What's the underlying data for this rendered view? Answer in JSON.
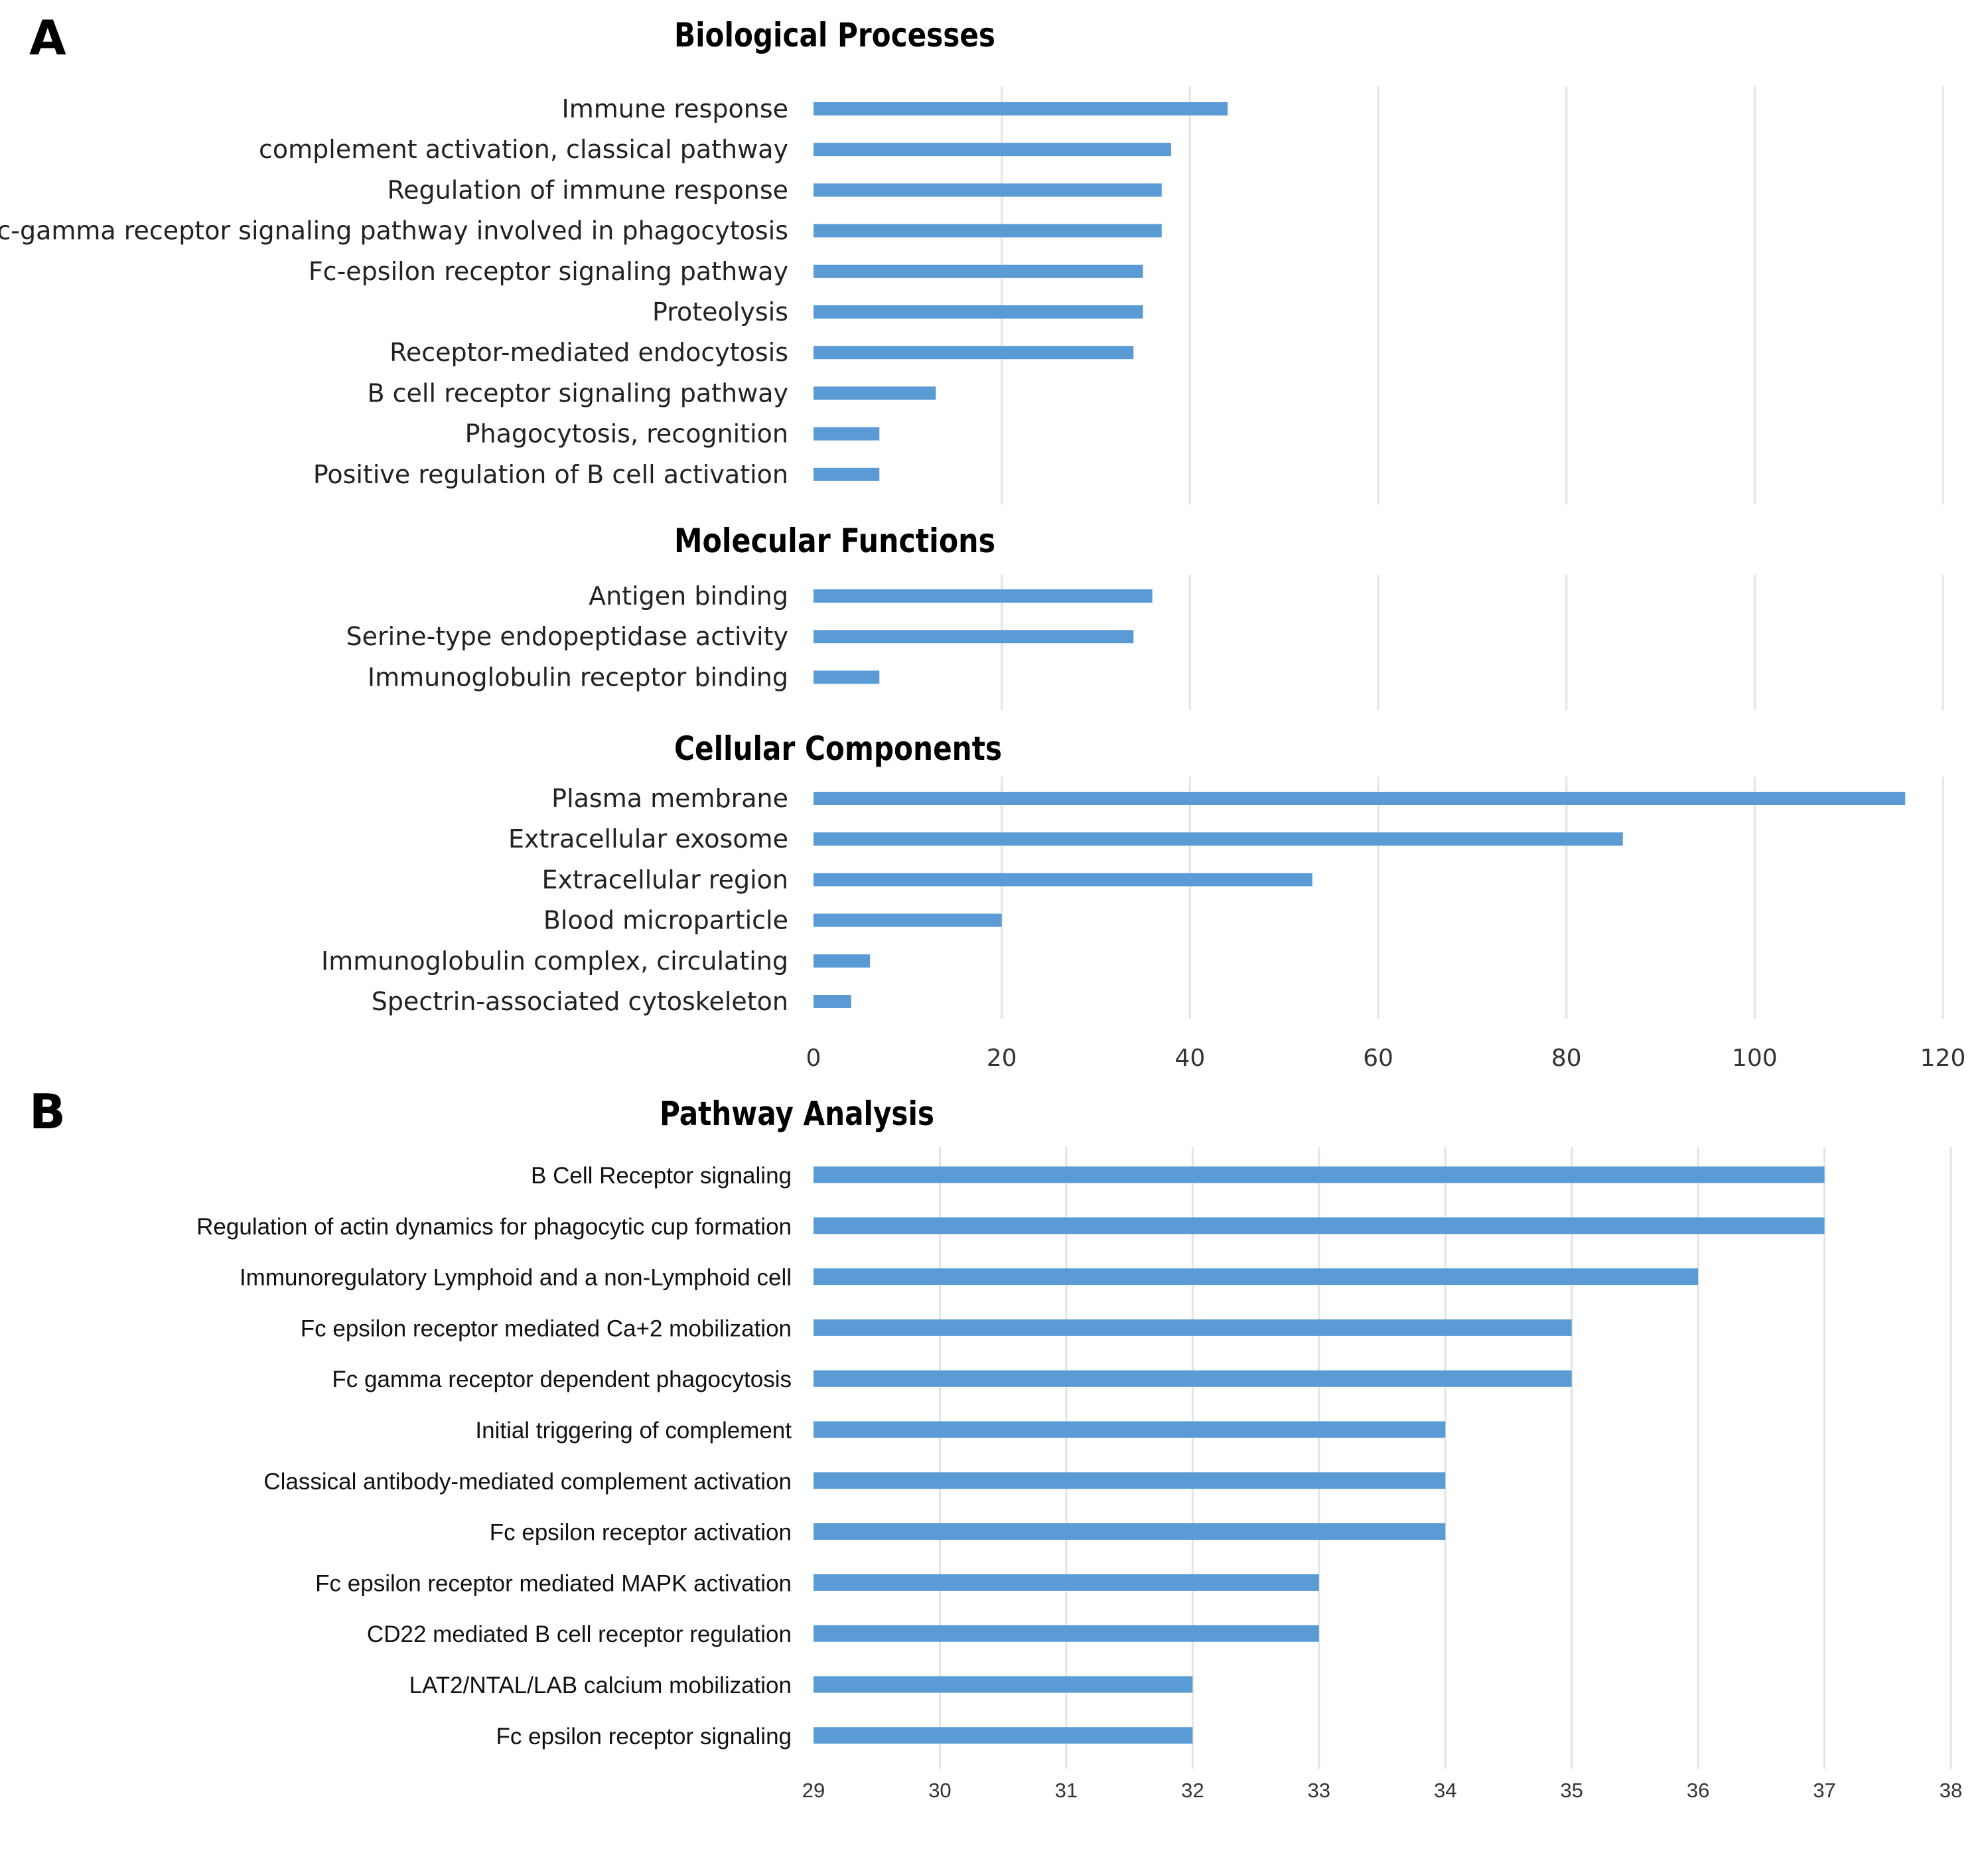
{
  "panels": {
    "a": "A",
    "b": "B"
  },
  "colors": {
    "bar": "#5b9bd5",
    "grid": "#e4e4e4",
    "text": "#222222"
  },
  "chart_data": [
    {
      "type": "bar",
      "orientation": "horizontal",
      "title": "Biological Processes",
      "categories": [
        "Immune response",
        "complement activation, classical pathway",
        "Regulation of immune response",
        "Fc-gamma receptor signaling pathway involved in phagocytosis",
        "Fc-epsilon receptor signaling pathway",
        "Proteolysis",
        "Receptor-mediated endocytosis",
        "B cell receptor signaling pathway",
        "Phagocytosis, recognition",
        "Positive regulation of B cell activation"
      ],
      "values": [
        44,
        38,
        37,
        37,
        35,
        35,
        34,
        13,
        7,
        7
      ],
      "xlim": [
        0,
        120
      ],
      "grid": true
    },
    {
      "type": "bar",
      "orientation": "horizontal",
      "title": "Molecular Functions",
      "categories": [
        "Antigen binding",
        "Serine-type endopeptidase activity",
        "Immunoglobulin receptor binding"
      ],
      "values": [
        36,
        34,
        7
      ],
      "xlim": [
        0,
        120
      ],
      "grid": true
    },
    {
      "type": "bar",
      "orientation": "horizontal",
      "title": "Cellular Components",
      "categories": [
        "Plasma membrane",
        "Extracellular exosome",
        "Extracellular region",
        "Blood microparticle",
        "Immunoglobulin complex, circulating",
        "Spectrin-associated cytoskeleton"
      ],
      "values": [
        116,
        86,
        53,
        20,
        6,
        4
      ],
      "xlim": [
        0,
        120
      ],
      "xticks": [
        "0",
        "20",
        "40",
        "60",
        "80",
        "100",
        "120"
      ],
      "grid": true
    },
    {
      "type": "bar",
      "orientation": "horizontal",
      "title": "Pathway Analysis",
      "categories": [
        "B Cell Receptor signaling",
        "Regulation of actin dynamics for phagocytic cup formation",
        "Immunoregulatory Lymphoid and a non-Lymphoid cell",
        "Fc epsilon receptor  mediated Ca+2 mobilization",
        "Fc gamma receptor dependent phagocytosis",
        "Initial triggering of complement",
        "Classical antibody-mediated complement activation",
        "Fc epsilon receptor  activation",
        "Fc epsilon receptor mediated MAPK activation",
        "CD22 mediated B cell receptor regulation",
        "LAT2/NTAL/LAB calcium mobilization",
        "Fc epsilon receptor signaling"
      ],
      "values": [
        37,
        37,
        36,
        35,
        35,
        34,
        34,
        34,
        33,
        33,
        32,
        32
      ],
      "xlim": [
        29,
        38
      ],
      "xticks": [
        "29",
        "30",
        "31",
        "32",
        "33",
        "34",
        "35",
        "36",
        "37",
        "38"
      ],
      "grid": true
    }
  ]
}
